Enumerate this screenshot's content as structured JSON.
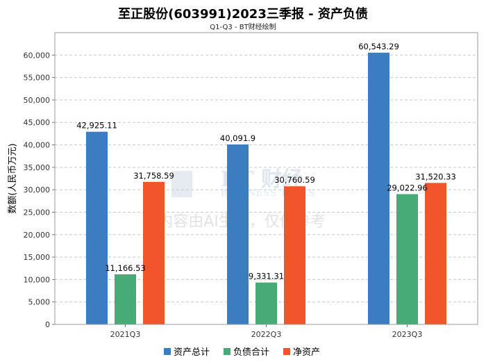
{
  "title": "至正股份(603991)2023三季报 - 资产负债",
  "subtitle": "Q1-Q3 - BT财经绘制",
  "watermark": {
    "logo_text": "BT 财经",
    "sub_text": "BUSINESS TIMES",
    "notice": "内容由AI生成，仅供参考"
  },
  "chart_data": {
    "type": "bar",
    "categories": [
      "2021Q3",
      "2022Q3",
      "2023Q3"
    ],
    "ylabel": "数额(人民币万元)",
    "xlabel": "",
    "ylim": [
      0,
      65000
    ],
    "yticks": [
      0,
      5000,
      10000,
      15000,
      20000,
      25000,
      30000,
      35000,
      40000,
      45000,
      50000,
      55000,
      60000
    ],
    "grid": true,
    "legend_position": "bottom",
    "series": [
      {
        "name": "资产总计",
        "color": "#3b7dc0",
        "values": [
          42925.11,
          40091.9,
          60543.29
        ],
        "labels": [
          "42,925.11",
          "40,091.9",
          "60,543.29"
        ]
      },
      {
        "name": "负债合计",
        "color": "#46ab77",
        "values": [
          11166.53,
          9331.31,
          29022.96
        ],
        "labels": [
          "11,166.53",
          "9,331.31",
          "29,022.96"
        ]
      },
      {
        "name": "净资产",
        "color": "#f2552b",
        "values": [
          31758.59,
          30760.59,
          31520.33
        ],
        "labels": [
          "31,758.59",
          "30,760.59",
          "31,520.33"
        ]
      }
    ]
  }
}
